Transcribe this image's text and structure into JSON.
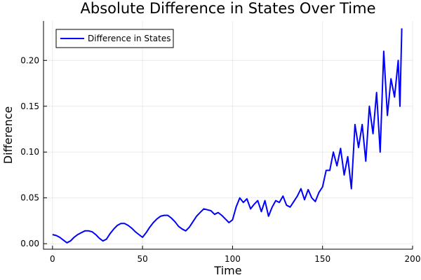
{
  "chart_data": {
    "type": "line",
    "title": "Absolute Difference in States Over Time",
    "xlabel": "Time",
    "ylabel": "Difference",
    "xlim": [
      -5,
      200
    ],
    "ylim": [
      -0.006,
      0.243
    ],
    "xticks": [
      0,
      50,
      100,
      150,
      200
    ],
    "xtick_labels": [
      "0",
      "50",
      "100",
      "150",
      "200"
    ],
    "yticks": [
      0.0,
      0.05,
      0.1,
      0.15,
      0.2
    ],
    "ytick_labels": [
      "0.00",
      "0.05",
      "0.10",
      "0.15",
      "0.20"
    ],
    "grid": true,
    "legend_position": "top-left",
    "series": [
      {
        "name": "Difference in States",
        "color": "#0000ff",
        "x": [
          0,
          2,
          4,
          6,
          8,
          10,
          12,
          14,
          16,
          18,
          20,
          22,
          24,
          26,
          28,
          30,
          32,
          34,
          36,
          38,
          40,
          42,
          44,
          46,
          48,
          50,
          52,
          54,
          56,
          58,
          60,
          62,
          64,
          66,
          68,
          70,
          72,
          74,
          76,
          78,
          80,
          82,
          84,
          86,
          88,
          90,
          92,
          94,
          96,
          98,
          100,
          102,
          104,
          106,
          108,
          110,
          112,
          114,
          116,
          118,
          120,
          122,
          124,
          126,
          128,
          130,
          132,
          134,
          136,
          138,
          140,
          142,
          144,
          146,
          148,
          150,
          152,
          154,
          156,
          158,
          160,
          162,
          164,
          166,
          168,
          170,
          172,
          174,
          176,
          178,
          180,
          182,
          184,
          186,
          188,
          190,
          192,
          193,
          194
        ],
        "values": [
          0.01,
          0.009,
          0.007,
          0.004,
          0.001,
          0.003,
          0.007,
          0.01,
          0.012,
          0.014,
          0.014,
          0.013,
          0.01,
          0.006,
          0.003,
          0.005,
          0.011,
          0.016,
          0.02,
          0.022,
          0.022,
          0.02,
          0.017,
          0.013,
          0.01,
          0.007,
          0.012,
          0.018,
          0.023,
          0.027,
          0.03,
          0.031,
          0.031,
          0.028,
          0.024,
          0.019,
          0.016,
          0.014,
          0.018,
          0.024,
          0.03,
          0.034,
          0.038,
          0.037,
          0.036,
          0.032,
          0.034,
          0.031,
          0.027,
          0.023,
          0.026,
          0.04,
          0.05,
          0.045,
          0.049,
          0.038,
          0.043,
          0.047,
          0.035,
          0.047,
          0.03,
          0.04,
          0.047,
          0.045,
          0.052,
          0.042,
          0.04,
          0.046,
          0.052,
          0.06,
          0.048,
          0.059,
          0.05,
          0.046,
          0.056,
          0.062,
          0.08,
          0.08,
          0.1,
          0.085,
          0.104,
          0.075,
          0.095,
          0.06,
          0.13,
          0.105,
          0.13,
          0.09,
          0.15,
          0.12,
          0.165,
          0.1,
          0.21,
          0.14,
          0.18,
          0.16,
          0.2,
          0.15,
          0.235
        ]
      }
    ]
  }
}
